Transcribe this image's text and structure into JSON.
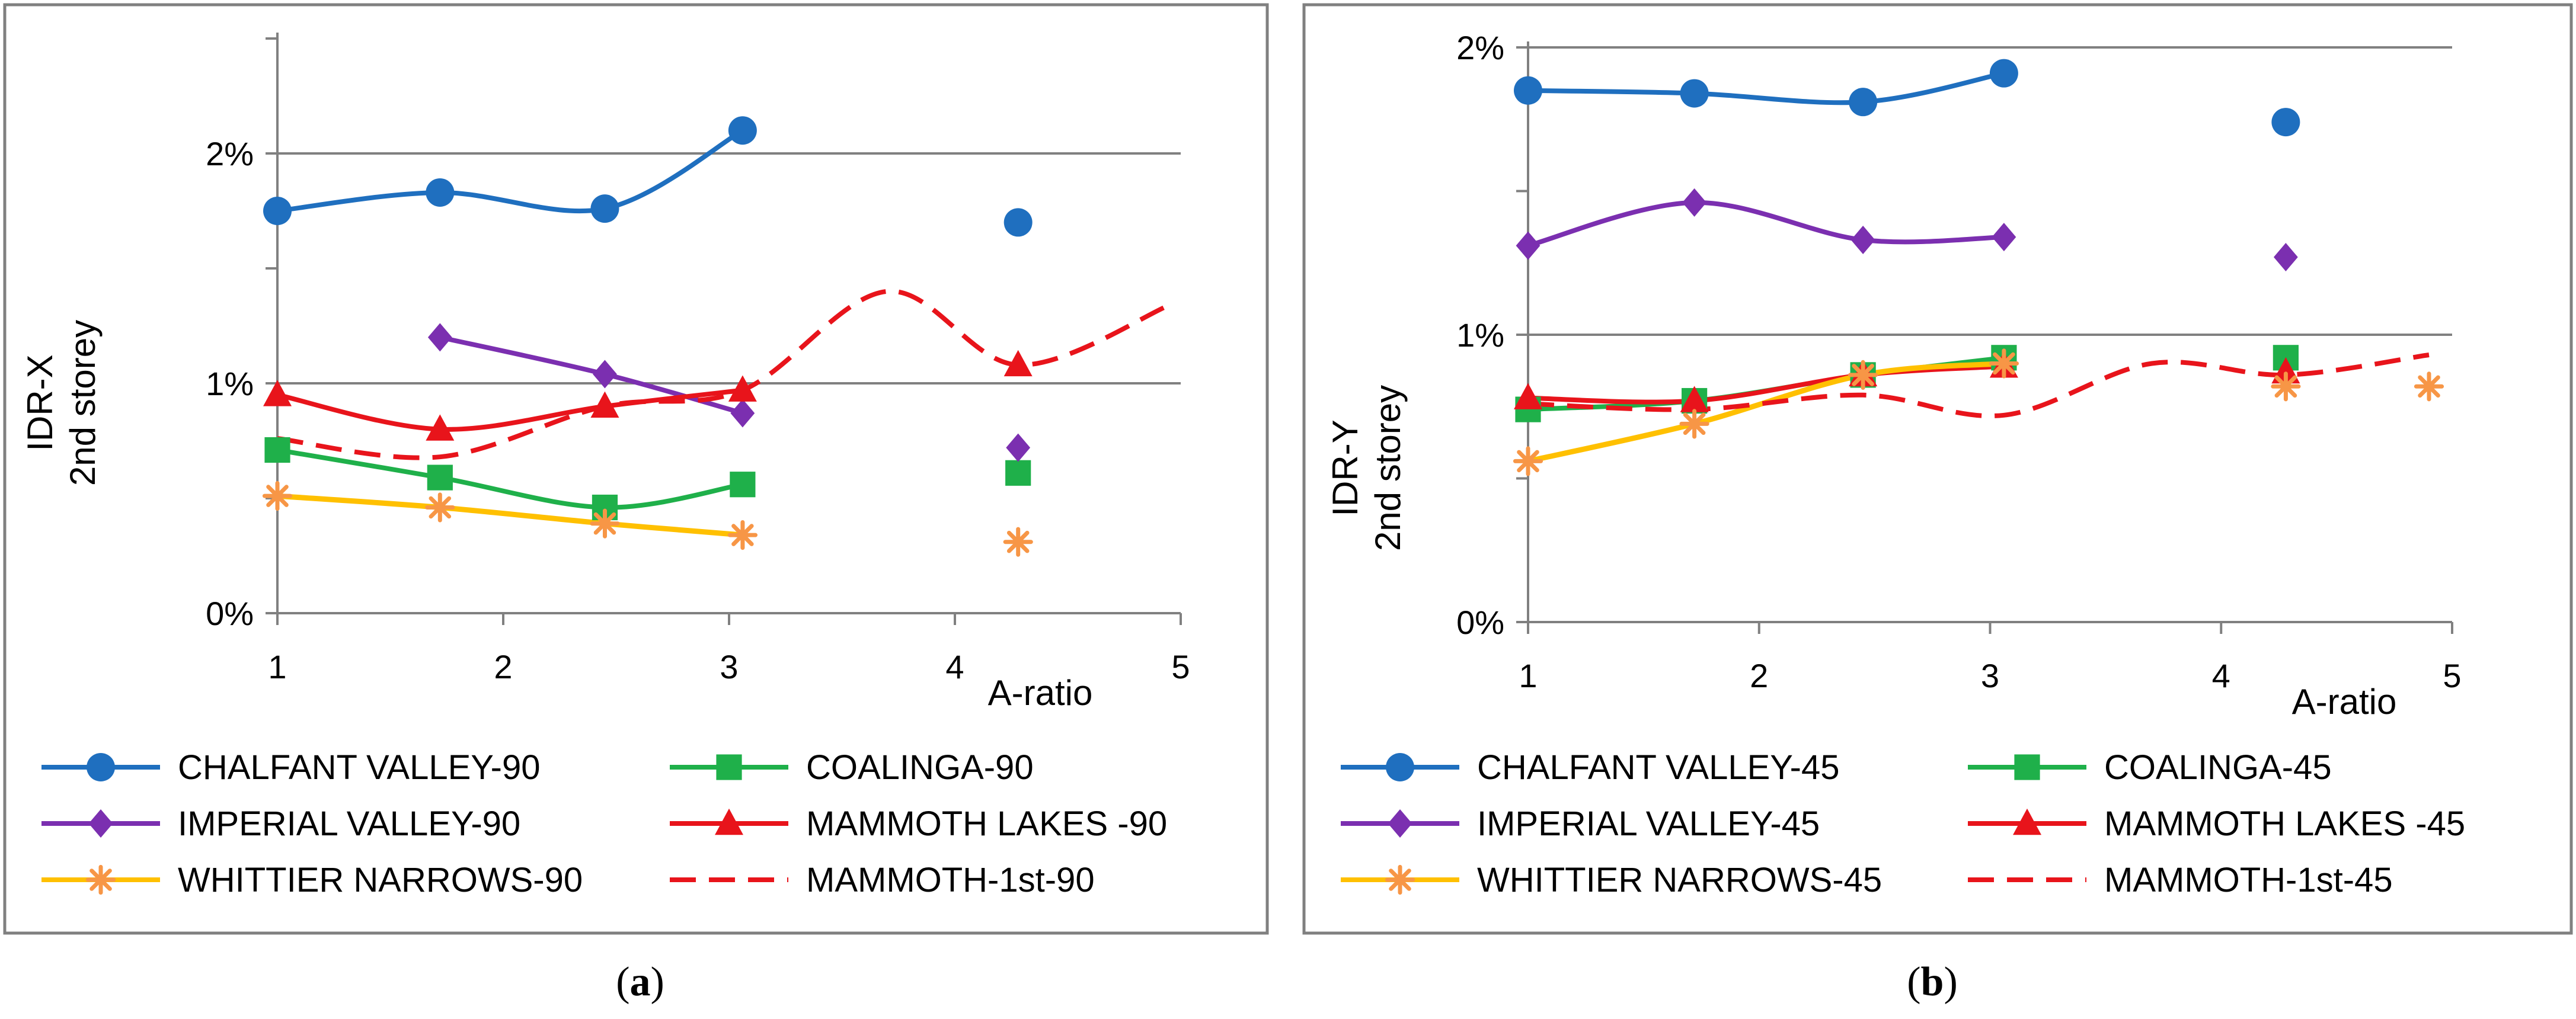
{
  "colors": {
    "chalfant": "#1f6fbf",
    "coalinga": "#1fb04a",
    "imperial": "#7b2fb0",
    "mammoth": "#e8141b",
    "whittier": "#ffc000",
    "whittier_marker": "#f79646",
    "mammoth_1st": "#e8141b",
    "grid": "#808080",
    "frame": "#808080"
  },
  "chart_data": [
    {
      "type": "line",
      "panel": "(a)",
      "caption_letter": "a",
      "ylabel_line1": "IDR-X",
      "ylabel_line2": "2nd storey",
      "xlabel": "A-ratio",
      "xlim": [
        1,
        5
      ],
      "ylim": [
        0,
        2.5
      ],
      "x_ticks": [
        "1",
        "2",
        "3",
        "4",
        "5"
      ],
      "y_ticks": [
        {
          "value": 0,
          "label": "0%"
        },
        {
          "value": 1,
          "label": "1%"
        },
        {
          "value": 2,
          "label": "2%"
        }
      ],
      "gridlines": [
        1,
        2
      ],
      "series": [
        {
          "key": "chalfant",
          "name": "CHALFANT VALLEY-90",
          "marker": "circle",
          "dashed": false,
          "line": [
            [
              1,
              1.75
            ],
            [
              1.72,
              1.83
            ],
            [
              2.45,
              1.76
            ],
            [
              3.06,
              2.1
            ]
          ],
          "points": [
            [
              1,
              1.75
            ],
            [
              1.72,
              1.83
            ],
            [
              2.45,
              1.76
            ],
            [
              3.06,
              2.1
            ],
            [
              4.28,
              1.7
            ]
          ]
        },
        {
          "key": "coalinga",
          "name": "COALINGA-90",
          "marker": "square",
          "dashed": false,
          "line": [
            [
              1,
              0.71
            ],
            [
              1.72,
              0.59
            ],
            [
              2.45,
              0.46
            ],
            [
              3.06,
              0.56
            ]
          ],
          "points": [
            [
              1,
              0.71
            ],
            [
              1.72,
              0.59
            ],
            [
              2.45,
              0.46
            ],
            [
              3.06,
              0.56
            ],
            [
              4.28,
              0.61
            ]
          ]
        },
        {
          "key": "imperial",
          "name": "IMPERIAL VALLEY-90",
          "marker": "diamond",
          "dashed": false,
          "line": [
            [
              1.72,
              1.2
            ],
            [
              2.45,
              1.04
            ],
            [
              3.06,
              0.87
            ]
          ],
          "points": [
            [
              1.72,
              1.2
            ],
            [
              2.45,
              1.04
            ],
            [
              3.06,
              0.87
            ],
            [
              4.28,
              0.72
            ]
          ]
        },
        {
          "key": "mammoth",
          "name": "MAMMOTH LAKES -90",
          "marker": "triangle",
          "dashed": false,
          "line": [
            [
              1,
              0.95
            ],
            [
              1.72,
              0.8
            ],
            [
              2.45,
              0.9
            ],
            [
              3.06,
              0.97
            ]
          ],
          "points": [
            [
              1,
              0.95
            ],
            [
              1.72,
              0.8
            ],
            [
              2.45,
              0.9
            ],
            [
              3.06,
              0.97
            ],
            [
              4.28,
              1.08
            ]
          ]
        },
        {
          "key": "whittier",
          "name": "WHITTIER NARROWS-90",
          "marker": "star",
          "dashed": false,
          "line": [
            [
              1,
              0.51
            ],
            [
              1.72,
              0.46
            ],
            [
              2.45,
              0.39
            ],
            [
              3.06,
              0.34
            ]
          ],
          "points": [
            [
              1,
              0.51
            ],
            [
              1.72,
              0.46
            ],
            [
              2.45,
              0.39
            ],
            [
              3.06,
              0.34
            ],
            [
              4.28,
              0.31
            ]
          ]
        },
        {
          "key": "mammoth_1st",
          "name": "MAMMOTH-1st-90",
          "marker": "none",
          "dashed": true,
          "line": [
            [
              1,
              0.76
            ],
            [
              1.72,
              0.68
            ],
            [
              2.45,
              0.9
            ],
            [
              3.06,
              0.97
            ],
            [
              3.7,
              1.4
            ],
            [
              4.28,
              1.08
            ],
            [
              4.95,
              1.34
            ]
          ],
          "points": []
        }
      ]
    },
    {
      "type": "line",
      "panel": "(b)",
      "caption_letter": "b",
      "ylabel_line1": "IDR-Y",
      "ylabel_line2": "2nd storey",
      "xlabel": "A-ratio",
      "xlim": [
        1,
        5
      ],
      "ylim": [
        0,
        2
      ],
      "x_ticks": [
        "1",
        "2",
        "3",
        "4",
        "5"
      ],
      "y_ticks": [
        {
          "value": 0,
          "label": "0%"
        },
        {
          "value": 1,
          "label": "1%"
        },
        {
          "value": 2,
          "label": "2%"
        }
      ],
      "gridlines": [
        1,
        2
      ],
      "series": [
        {
          "key": "chalfant",
          "name": "CHALFANT VALLEY-45",
          "marker": "circle",
          "dashed": false,
          "line": [
            [
              1,
              1.85
            ],
            [
              1.72,
              1.84
            ],
            [
              2.45,
              1.81
            ],
            [
              3.06,
              1.91
            ]
          ],
          "points": [
            [
              1,
              1.85
            ],
            [
              1.72,
              1.84
            ],
            [
              2.45,
              1.81
            ],
            [
              3.06,
              1.91
            ],
            [
              4.28,
              1.74
            ]
          ]
        },
        {
          "key": "coalinga",
          "name": "COALINGA-45",
          "marker": "square",
          "dashed": false,
          "line": [
            [
              1,
              0.74
            ],
            [
              1.72,
              0.77
            ],
            [
              2.45,
              0.86
            ],
            [
              3.06,
              0.92
            ]
          ],
          "points": [
            [
              1,
              0.74
            ],
            [
              1.72,
              0.77
            ],
            [
              2.45,
              0.86
            ],
            [
              3.06,
              0.92
            ],
            [
              4.28,
              0.92
            ]
          ]
        },
        {
          "key": "imperial",
          "name": "IMPERIAL VALLEY-45",
          "marker": "diamond",
          "dashed": false,
          "line": [
            [
              1,
              1.31
            ],
            [
              1.72,
              1.46
            ],
            [
              2.45,
              1.33
            ],
            [
              3.06,
              1.34
            ]
          ],
          "points": [
            [
              1,
              1.31
            ],
            [
              1.72,
              1.46
            ],
            [
              2.45,
              1.33
            ],
            [
              3.06,
              1.34
            ],
            [
              4.28,
              1.27
            ]
          ]
        },
        {
          "key": "mammoth",
          "name": "MAMMOTH LAKES -45",
          "marker": "triangle",
          "dashed": false,
          "line": [
            [
              1,
              0.78
            ],
            [
              1.72,
              0.77
            ],
            [
              2.45,
              0.86
            ],
            [
              3.06,
              0.89
            ]
          ],
          "points": [
            [
              1,
              0.78
            ],
            [
              1.72,
              0.77
            ],
            [
              2.45,
              0.86
            ],
            [
              3.06,
              0.89
            ],
            [
              4.28,
              0.87
            ]
          ]
        },
        {
          "key": "whittier",
          "name": "WHITTIER NARROWS-45",
          "marker": "star",
          "dashed": false,
          "line": [
            [
              1,
              0.56
            ],
            [
              1.72,
              0.69
            ],
            [
              2.45,
              0.86
            ],
            [
              3.06,
              0.9
            ]
          ],
          "points": [
            [
              1,
              0.56
            ],
            [
              1.72,
              0.69
            ],
            [
              2.45,
              0.86
            ],
            [
              3.06,
              0.9
            ],
            [
              4.28,
              0.82
            ],
            [
              4.9,
              0.82
            ]
          ]
        },
        {
          "key": "mammoth_1st",
          "name": "MAMMOTH-1st-45",
          "marker": "none",
          "dashed": true,
          "line": [
            [
              1,
              0.76
            ],
            [
              1.72,
              0.74
            ],
            [
              2.45,
              0.79
            ],
            [
              3.06,
              0.72
            ],
            [
              3.7,
              0.9
            ],
            [
              4.28,
              0.86
            ],
            [
              4.9,
              0.93
            ]
          ],
          "points": []
        }
      ]
    }
  ]
}
